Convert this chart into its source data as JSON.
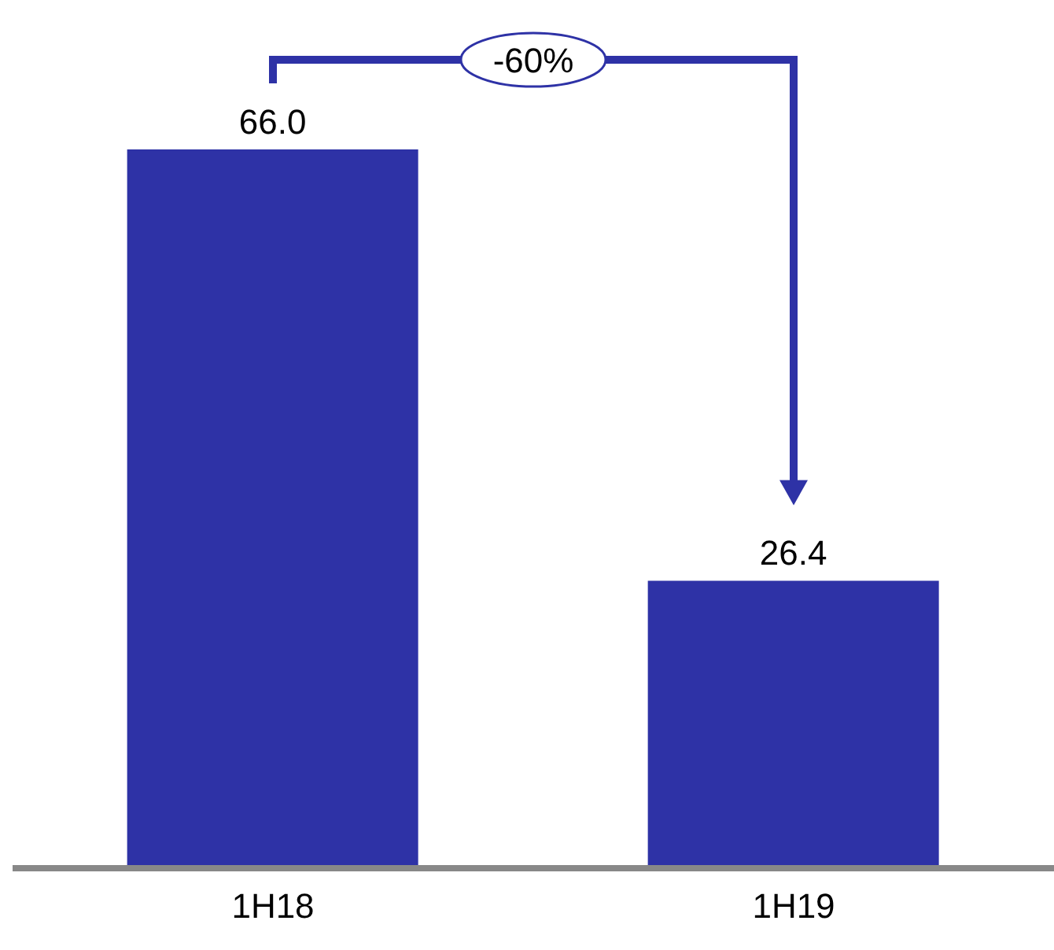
{
  "chart_data": {
    "type": "bar",
    "categories": [
      "1H18",
      "1H19"
    ],
    "values": [
      66.0,
      26.4
    ],
    "color": "#2e32a6",
    "data_labels": true,
    "value_labels": [
      "66.0",
      "26.4"
    ],
    "annotations": [
      "-60%"
    ]
  }
}
